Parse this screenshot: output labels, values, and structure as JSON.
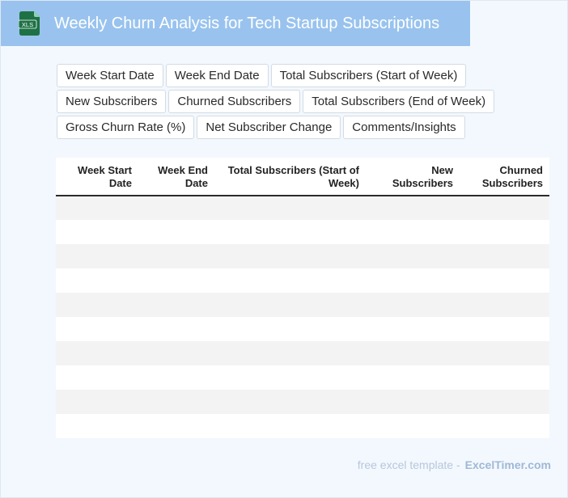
{
  "header": {
    "title": "Weekly Churn Analysis for Tech Startup Subscriptions",
    "icon": "xls-file-icon",
    "icon_label": "XLS",
    "icon_color": "#1e7145",
    "bar_color": "#99c3ee"
  },
  "chips": {
    "row1": [
      "Week Start Date",
      "Week End Date",
      "Total Subscribers (Start of Week)"
    ],
    "row2": [
      "New Subscribers",
      "Churned Subscribers",
      "Total Subscribers (End of Week)"
    ],
    "row3": [
      "Gross Churn Rate (%)",
      "Net Subscriber Change",
      "Comments/Insights"
    ]
  },
  "table": {
    "columns": [
      "Week Start Date",
      "Week End Date",
      "Total Subscribers (Start of Week)",
      "New Subscribers",
      "Churned Subscribers"
    ],
    "row_count": 10
  },
  "footer": {
    "label": "free excel template -",
    "brand": "ExcelTimer.com"
  }
}
